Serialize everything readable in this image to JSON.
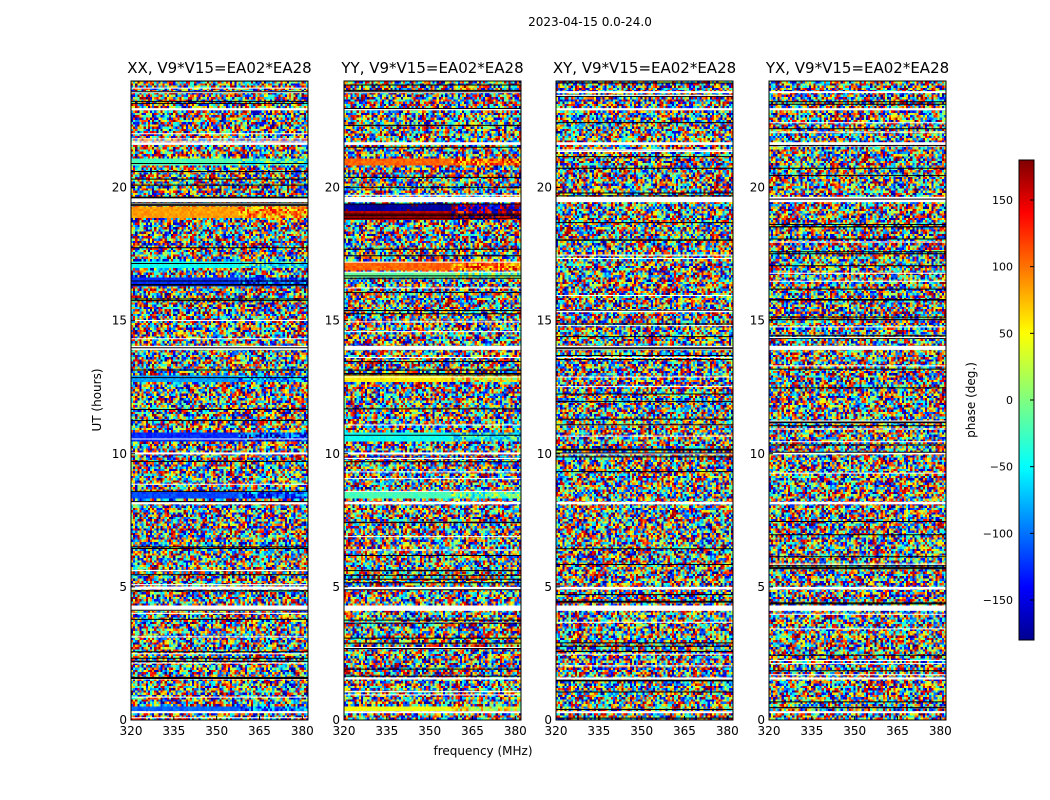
{
  "suptitle": "2023-04-15 0.0-24.0",
  "chart_data": {
    "type": "heatmap",
    "title": "2023-04-15 0.0-24.0",
    "xlabel": "frequency (MHz)",
    "ylabel": "UT (hours)",
    "xlim": [
      320,
      382
    ],
    "ylim": [
      0,
      24
    ],
    "xticks": [
      320,
      335,
      350,
      365,
      380
    ],
    "yticks": [
      0,
      5,
      10,
      15,
      20
    ],
    "panels": [
      {
        "title": "XX, V9*V15=EA02*EA28",
        "pol": "XX"
      },
      {
        "title": "YY, V9*V15=EA02*EA28",
        "pol": "YY"
      },
      {
        "title": "XY, V9*V15=EA02*EA28",
        "pol": "XY"
      },
      {
        "title": "YX, V9*V15=EA02*EA28",
        "pol": "YX"
      }
    ],
    "colorbar": {
      "label": "phase (deg.)",
      "range": [
        -180,
        180
      ],
      "ticks": [
        150,
        100,
        50,
        0,
        -50,
        -100,
        -150
      ],
      "colormap": "jet"
    },
    "flagged_ut_bands": [
      [
        0.27,
        0.33
      ],
      [
        1.52,
        1.6
      ],
      [
        4.1,
        4.3
      ],
      [
        4.9,
        5.0
      ],
      [
        8.1,
        8.2
      ],
      [
        10.0,
        10.05
      ],
      [
        13.9,
        14.05
      ],
      [
        19.45,
        19.65
      ],
      [
        21.6,
        21.7
      ],
      [
        22.9,
        22.98
      ],
      [
        23.55,
        23.62
      ]
    ],
    "coherent_phase_bands": {
      "XX": [
        {
          "ut": [
            0.35,
            0.5
          ],
          "phase": -100
        },
        {
          "ut": [
            8.35,
            8.6
          ],
          "phase": -110
        },
        {
          "ut": [
            10.5,
            10.8
          ],
          "phase": -120
        },
        {
          "ut": [
            12.7,
            12.9
          ],
          "phase": -80
        },
        {
          "ut": [
            16.3,
            16.6
          ],
          "phase": -120
        },
        {
          "ut": [
            17.0,
            17.2
          ],
          "phase": -40
        },
        {
          "ut": [
            18.9,
            19.3
          ],
          "phase": 80
        },
        {
          "ut": [
            20.8,
            21.1
          ],
          "phase": -20
        }
      ],
      "YY": [
        {
          "ut": [
            0.35,
            0.5
          ],
          "phase": 40
        },
        {
          "ut": [
            8.35,
            8.6
          ],
          "phase": -20
        },
        {
          "ut": [
            10.5,
            10.8
          ],
          "phase": -40
        },
        {
          "ut": [
            12.7,
            12.9
          ],
          "phase": 50
        },
        {
          "ut": [
            16.6,
            16.8
          ],
          "phase": -10
        },
        {
          "ut": [
            16.9,
            17.2
          ],
          "phase": 100
        },
        {
          "ut": [
            18.8,
            19.1
          ],
          "phase": 160
        },
        {
          "ut": [
            19.15,
            19.35
          ],
          "phase": -170
        },
        {
          "ut": [
            20.8,
            21.1
          ],
          "phase": 100
        }
      ],
      "XY": [],
      "YX": []
    }
  }
}
